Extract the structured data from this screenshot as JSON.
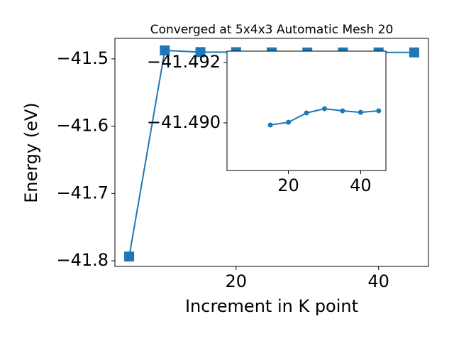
{
  "chart_data": [
    {
      "type": "line",
      "title": "Converged at 5x4x3 Automatic Mesh 20",
      "x_label": "Increment in K point",
      "y_label": "Energy (eV)",
      "x": [
        5,
        10,
        15,
        20,
        25,
        30,
        35,
        40,
        45
      ],
      "series": [
        {
          "color": "#1f77b4",
          "marker": "square",
          "values": [
            -41.7937,
            -41.4874,
            -41.4899,
            -41.49,
            -41.4903,
            -41.4905,
            -41.4904,
            -41.4904,
            -41.4904
          ]
        }
      ],
      "xlim": [
        3,
        47
      ],
      "xticks": [
        20,
        40
      ],
      "ylim": [
        -41.8084,
        -41.4695
      ],
      "yticks": [
        {
          "value": -41.8,
          "label": "−41.8"
        },
        {
          "value": -41.7,
          "label": "−41.7"
        },
        {
          "value": -41.6,
          "label": "−41.6"
        },
        {
          "value": -41.5,
          "label": "−41.5"
        }
      ]
    },
    {
      "type": "line",
      "x": [
        15,
        20,
        25,
        30,
        35,
        40,
        45
      ],
      "series": [
        {
          "color": "#1f77b4",
          "marker": "circle",
          "values": [
            -41.48993,
            -41.49002,
            -41.49033,
            -41.49047,
            -41.4904,
            -41.49035,
            -41.4904
          ]
        }
      ],
      "xlim": [
        3,
        47
      ],
      "xticks": [
        20,
        40
      ],
      "ylim": [
        -41.48842,
        -41.49238
      ],
      "yticks": [
        {
          "value": -41.492,
          "label": "−41.492"
        },
        {
          "value": -41.49,
          "label": "−41.490"
        }
      ]
    }
  ]
}
